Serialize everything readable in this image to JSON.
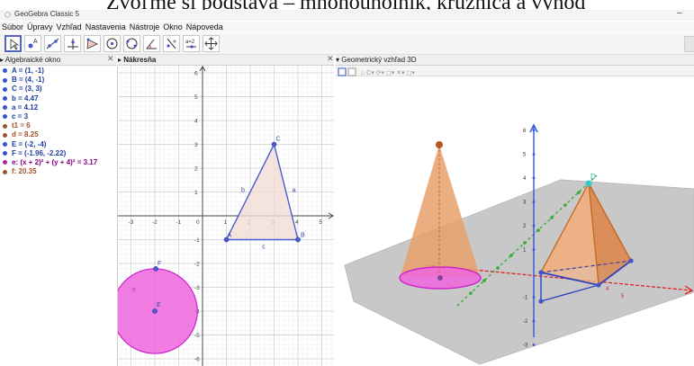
{
  "caption": "Zvoľme si podstava – mnohouholník, kružnica a vyhod",
  "app": {
    "title": "GeoGebra Classic 5",
    "minimize_glyph": "–"
  },
  "menu": [
    "Súbor",
    "Úpravy",
    "Vzhľad",
    "Nastavenia",
    "Nástroje",
    "Okno",
    "Nápoveda"
  ],
  "toolbar_tools": [
    {
      "name": "move-tool-icon"
    },
    {
      "name": "point-tool-icon"
    },
    {
      "name": "line-tool-icon"
    },
    {
      "name": "perpendicular-tool-icon"
    },
    {
      "name": "polygon-tool-icon"
    },
    {
      "name": "circle-tool-icon"
    },
    {
      "name": "circle-3pt-tool-icon"
    },
    {
      "name": "angle-tool-icon"
    },
    {
      "name": "reflect-tool-icon"
    },
    {
      "name": "slider-tool-icon",
      "label": "a=2"
    },
    {
      "name": "move-view-tool-icon"
    }
  ],
  "panels": {
    "algebra": {
      "title": "Algebraické okno",
      "close": "✕",
      "arrow": "▸"
    },
    "graphics": {
      "title": "Nákresňa",
      "close": "✕",
      "arrow": "▸"
    },
    "graphics3d": {
      "title": "Geometrický vzhľad 3D",
      "arrow": "▾"
    }
  },
  "algebra_items": [
    {
      "text": "A = (1, -1)",
      "color": "#1f3ea0",
      "dot": "#3355cc"
    },
    {
      "text": "B = (4, -1)",
      "color": "#1f3ea0",
      "dot": "#3355cc"
    },
    {
      "text": "C = (3, 3)",
      "color": "#1f3ea0",
      "dot": "#3355cc"
    },
    {
      "text": "b = 4.47",
      "color": "#1f3ea0",
      "dot": "#3355cc"
    },
    {
      "text": "a = 4.12",
      "color": "#1f3ea0",
      "dot": "#3355cc"
    },
    {
      "text": "c = 3",
      "color": "#1f3ea0",
      "dot": "#3355cc"
    },
    {
      "text": "t1 = 6",
      "color": "#a0522d",
      "dot": "#a0522d"
    },
    {
      "text": "d = 8.25",
      "color": "#a0522d",
      "dot": "#a0522d"
    },
    {
      "text": "E = (-2, -4)",
      "color": "#1f3ea0",
      "dot": "#3355cc"
    },
    {
      "text": "F = (-1.96, -2.22)",
      "color": "#1f3ea0",
      "dot": "#3355cc"
    },
    {
      "text": "e: (x + 2)² + (y + 4)² = 3.17",
      "color": "#880088",
      "dot": "#aa22aa"
    },
    {
      "text": "f: 20.35",
      "color": "#a0522d",
      "dot": "#a0522d"
    }
  ],
  "graphics2d": {
    "x_ticks": [
      "-3",
      "-2",
      "-1",
      "0",
      "1",
      "2",
      "3",
      "4",
      "5"
    ],
    "y_ticks": [
      "6",
      "5",
      "4",
      "3",
      "2",
      "1",
      "-1",
      "-2",
      "-3",
      "-4",
      "-5",
      "-6"
    ],
    "points": [
      {
        "label": "A",
        "x": 1,
        "y": -1
      },
      {
        "label": "B",
        "x": 4,
        "y": -1
      },
      {
        "label": "C",
        "x": 3,
        "y": 3
      },
      {
        "label": "E",
        "x": -2,
        "y": -4
      },
      {
        "label": "F",
        "x": -1.96,
        "y": -2.22
      }
    ],
    "segments": [
      {
        "label": "c",
        "from": "A",
        "to": "B"
      },
      {
        "label": "a",
        "from": "B",
        "to": "C"
      },
      {
        "label": "b",
        "from": "C",
        "to": "A"
      }
    ],
    "circle": {
      "label": "e",
      "center": "E",
      "through": "F"
    },
    "colors": {
      "triangle_fill": "#f3ddd5",
      "triangle_stroke": "#4b5cd0",
      "circle_fill": "#ee66dd",
      "circle_stroke": "#cc22cc",
      "point": "#4b5cd0"
    }
  },
  "graphics3d": {
    "z_ticks": [
      "6",
      "5",
      "4",
      "3",
      "2",
      "1",
      "-1",
      "-2",
      "-3"
    ],
    "x_ticks": [
      "4",
      "5"
    ],
    "point_label": "D",
    "colors": {
      "solid": "#e8a06a",
      "base": "#ee66dd",
      "edge": "#c56a25",
      "axis_z": "#3355dd",
      "axis_x": "#dd2222",
      "axis_y": "#33aa33"
    }
  }
}
